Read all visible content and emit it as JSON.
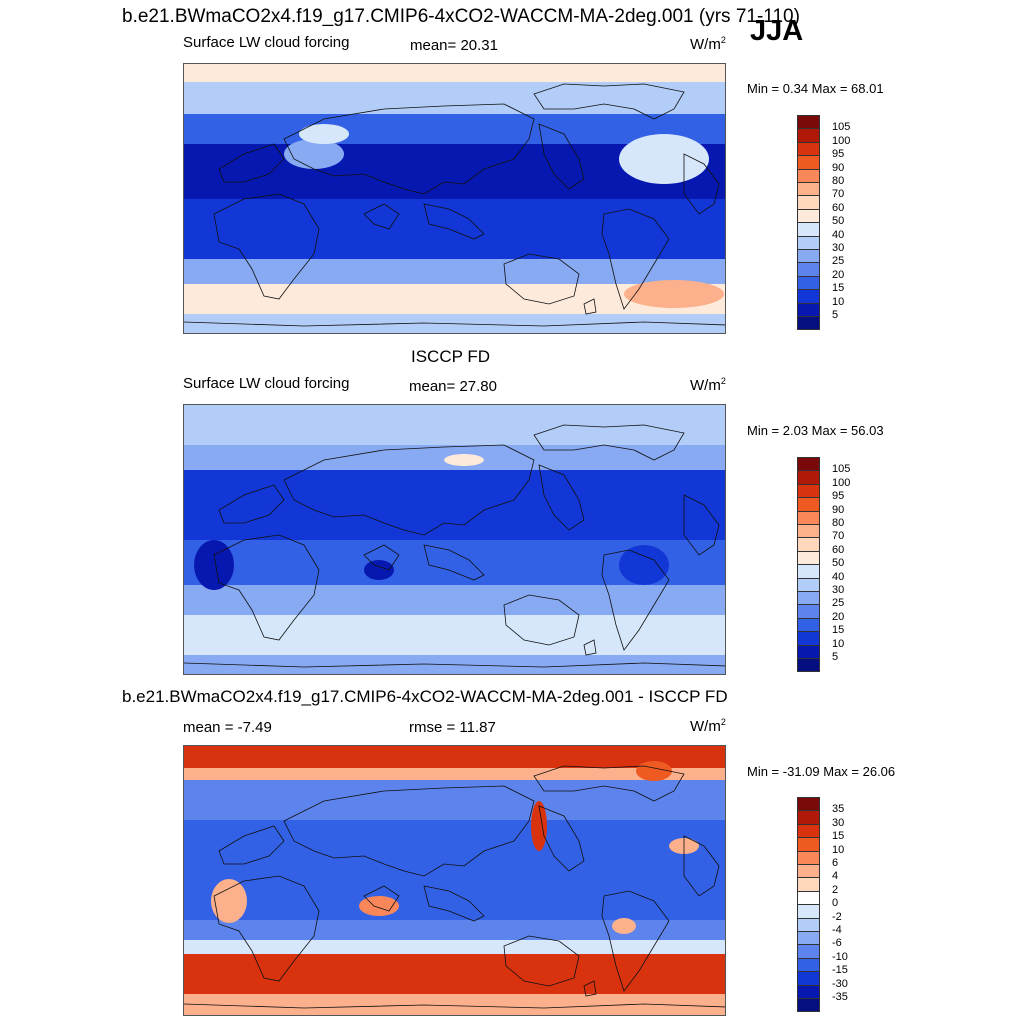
{
  "header": {
    "title": "b.e21.BWmaCO2x4.f19_g17.CMIP6-4xCO2-WACCM-MA-2deg.001 (yrs 71-110)",
    "season": "JJA"
  },
  "panels": [
    {
      "field": "Surface LW cloud forcing",
      "stat": "mean=  20.31",
      "units": "W/m",
      "units_sup": "2",
      "minmax": "Min =   0.34 Max =  68.01",
      "colorbar": {
        "labels": [
          "105",
          "100",
          "95",
          "90",
          "80",
          "70",
          "60",
          "50",
          "40",
          "30",
          "25",
          "20",
          "15",
          "10",
          "5"
        ],
        "colors": [
          "#7a0a0a",
          "#b01808",
          "#d8320f",
          "#ef5a22",
          "#f9875a",
          "#fcb08b",
          "#fed7bd",
          "#feeadb",
          "#d6e7fb",
          "#b2cdf7",
          "#87aaf2",
          "#5c84ec",
          "#3361e5",
          "#1237d6",
          "#0718b0",
          "#050f80"
        ]
      },
      "map_variant": "model"
    },
    {
      "panel_title": "ISCCP FD",
      "field": "Surface LW cloud forcing",
      "stat": "mean=  27.80",
      "units": "W/m",
      "units_sup": "2",
      "minmax": "Min =   2.03 Max =  56.03",
      "colorbar": {
        "labels": [
          "105",
          "100",
          "95",
          "90",
          "80",
          "70",
          "60",
          "50",
          "40",
          "30",
          "25",
          "20",
          "15",
          "10",
          "5"
        ],
        "colors": [
          "#7a0a0a",
          "#b01808",
          "#d8320f",
          "#ef5a22",
          "#f9875a",
          "#fcb08b",
          "#fed7bd",
          "#feeadb",
          "#d6e7fb",
          "#b2cdf7",
          "#87aaf2",
          "#5c84ec",
          "#3361e5",
          "#1237d6",
          "#0718b0",
          "#050f80"
        ]
      },
      "map_variant": "obs"
    },
    {
      "panel_title": "b.e21.BWmaCO2x4.f19_g17.CMIP6-4xCO2-WACCM-MA-2deg.001 - ISCCP FD",
      "field": "mean =  -7.49",
      "stat": "rmse =  11.87",
      "units": "W/m",
      "units_sup": "2",
      "minmax": "Min = -31.09 Max =  26.06",
      "colorbar": {
        "labels": [
          "35",
          "30",
          "15",
          "10",
          "6",
          "4",
          "2",
          "0",
          "-2",
          "-4",
          "-6",
          "-10",
          "-15",
          "-30",
          "-35"
        ],
        "colors": [
          "#7a0a0a",
          "#b01808",
          "#d8320f",
          "#ef5a22",
          "#f9875a",
          "#fcb08b",
          "#fed7bd",
          "#ffffff",
          "#d6e7fb",
          "#b2cdf7",
          "#87aaf2",
          "#5c84ec",
          "#3361e5",
          "#1237d6",
          "#0718b0",
          "#050f80"
        ]
      },
      "map_variant": "diff"
    }
  ]
}
